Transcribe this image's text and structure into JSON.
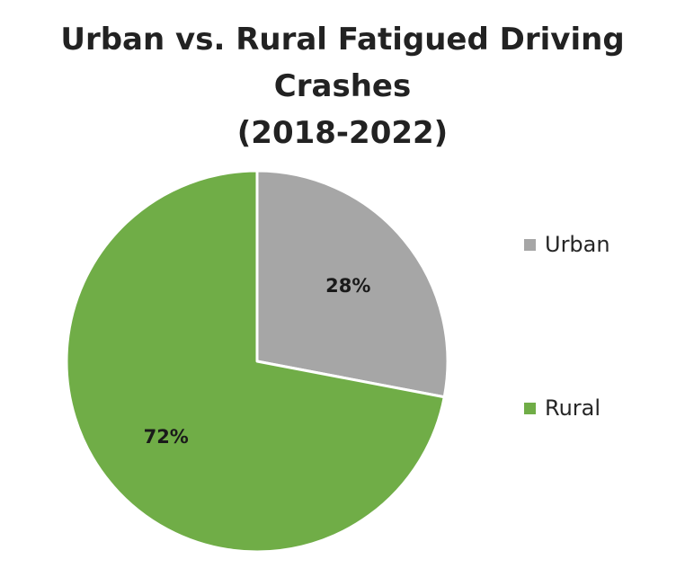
{
  "chart_data": {
    "type": "pie",
    "title_lines": [
      "Urban vs. Rural Fatigued Driving Crashes",
      "(2018-2022)"
    ],
    "slices": [
      {
        "name": "Urban",
        "value": 28,
        "label": "28%",
        "color": "#a6a6a6"
      },
      {
        "name": "Rural",
        "value": 72,
        "label": "72%",
        "color": "#70ad47"
      }
    ],
    "legend_placement": "right"
  }
}
